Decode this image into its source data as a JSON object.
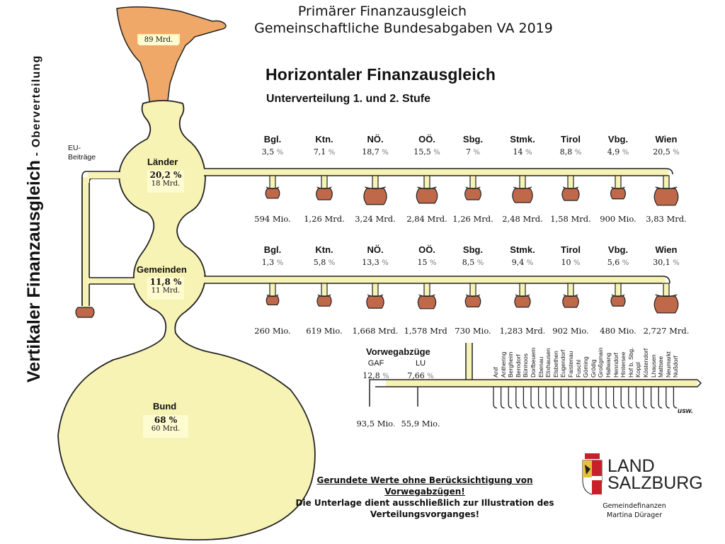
{
  "header": {
    "title_line1": "Primärer Finanzausgleich",
    "title_line2": "Gemeinschaftliche Bundesabgaben VA 2019"
  },
  "horizontal": {
    "title": "Horizontaler Finanzausgleich",
    "subtitle": "Unterverteilung 1. und 2. Stufe"
  },
  "vertical": {
    "title_big": "Vertikaler Finanzausgleich",
    "title_small": " - Oberverteilung"
  },
  "funnel": {
    "amount": "89 Mrd."
  },
  "eu": {
    "label_line1": "EU-",
    "label_line2": "Beiträge"
  },
  "laender": {
    "label": "Länder",
    "pct": "20,2 %",
    "amount": "18 Mrd."
  },
  "gemeinden": {
    "label": "Gemeinden",
    "pct": "11,8 %",
    "amount": "11 Mrd."
  },
  "bund": {
    "label": "Bund",
    "pct": "68 %",
    "amount": "60 Mrd."
  },
  "unit_symbol": "%",
  "row1": {
    "states": [
      "Bgl.",
      "Ktn.",
      "NÖ.",
      "OÖ.",
      "Sbg.",
      "Stmk.",
      "Tirol",
      "Vbg.",
      "Wien"
    ],
    "pcts": [
      "3,5",
      "7,1",
      "18,7",
      "15,5",
      "7",
      "14",
      "8,8",
      "4,9",
      "20,5"
    ],
    "amounts": [
      "594 Mio.",
      "1,26 Mrd.",
      "3,24 Mrd.",
      "2,84 Mrd.",
      "1,26 Mrd.",
      "2,48 Mrd.",
      "1,58 Mrd.",
      "900 Mio.",
      "3,83 Mrd."
    ]
  },
  "row2": {
    "states": [
      "Bgl.",
      "Ktn.",
      "NÖ.",
      "OÖ.",
      "Sbg.",
      "Stmk.",
      "Tirol",
      "Vbg.",
      "Wien"
    ],
    "pcts": [
      "1,3",
      "5,8",
      "13,3",
      "15",
      "8,5",
      "9,4",
      "10",
      "5,6",
      "30,1"
    ],
    "amounts": [
      "260 Mio.",
      "619 Mio.",
      "1,668 Mrd.",
      "1,578 Mrd.",
      "730 Mio.",
      "1,283 Mrd.",
      "902 Mio.",
      "480 Mio.",
      "2,727 Mrd."
    ]
  },
  "vorweg": {
    "title": "Vorwegabzüge",
    "items": [
      {
        "label": "GAF",
        "pct": "12,8",
        "amount": "93,5 Mio."
      },
      {
        "label": "LU",
        "pct": "7,66",
        "amount": "55,9 Mio."
      }
    ]
  },
  "municipalities": [
    "Anif",
    "Anthering",
    "Bergheim",
    "Berndorf",
    "Bürmoos",
    "Dorfbeuern",
    "Ebenau",
    "Elixhausen",
    "Elsbethen",
    "Eugendorf",
    "Faistenau",
    "Fuschl",
    "Göming",
    "Grödig",
    "Großgmain",
    "Hallwang",
    "Henndorf",
    "Hintersee",
    "Hof b. Sbg.",
    "Koppl",
    "Köstendorf",
    "Lhausen",
    "Mattsee",
    "Neumarkt",
    "Nußdorf",
    "usw."
  ],
  "usw": "usw.",
  "note": {
    "line1": "Gerundete Werte ohne Berücksichtigung von Vorwegabzügen!",
    "line2": "Die Unterlage dient ausschließlich zur Illustration des",
    "line3": "Verteilungsvorganges!"
  },
  "logo": {
    "line1": "LAND",
    "line2": "SALZBURG"
  },
  "credit": {
    "line1": "Gemeindefinanzen",
    "line2": "Martina Dürager"
  },
  "colors": {
    "liquid": "#f7f3b4",
    "funnel": "#f0a868",
    "pot": "#c0694a",
    "outline": "#222222",
    "logo_red": "#c8202b"
  }
}
